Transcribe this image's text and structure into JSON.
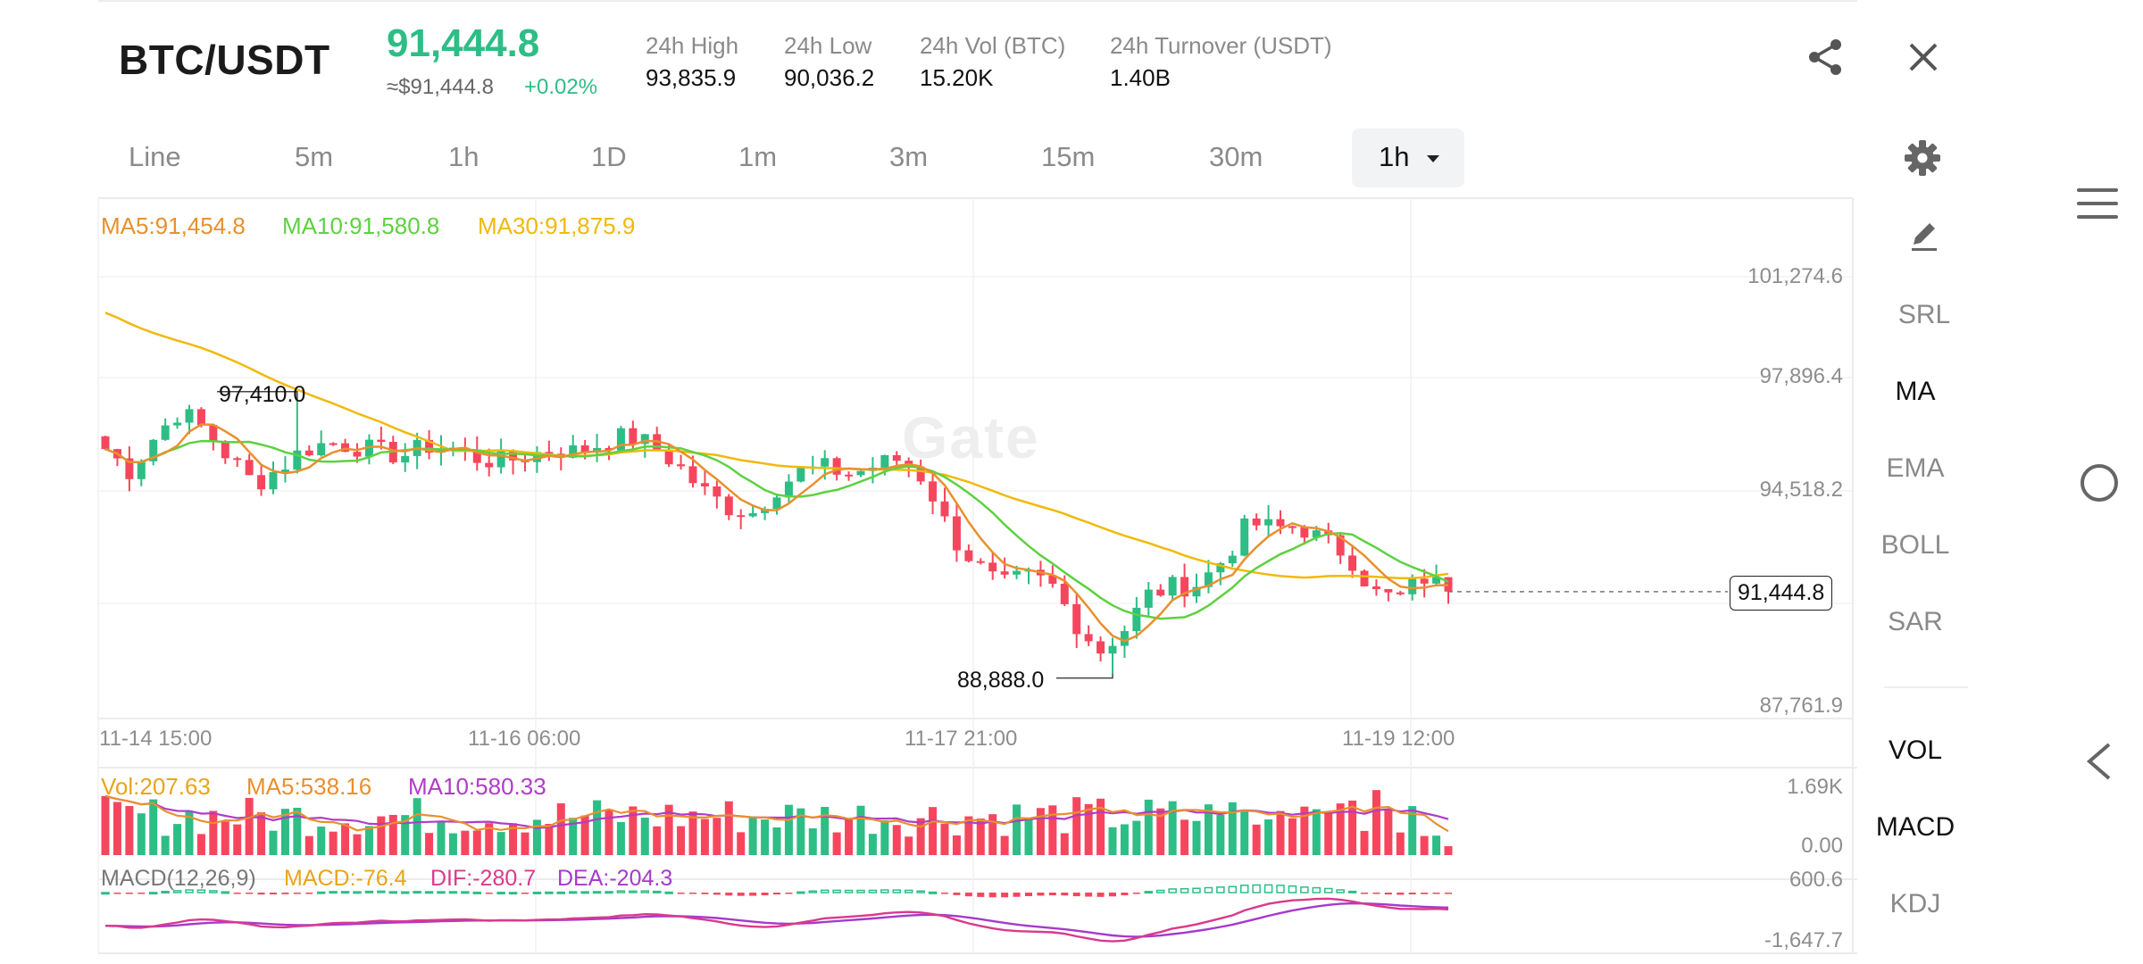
{
  "header": {
    "pair": "BTC/USDT",
    "last_price": "91,444.8",
    "approx_usd": "≈$91,444.8",
    "change_pct": "+0.02%",
    "stats": [
      {
        "label": "24h High",
        "value": "93,835.9"
      },
      {
        "label": "24h Low",
        "value": "90,036.2"
      },
      {
        "label": "24h Vol (BTC)",
        "value": "15.20K"
      },
      {
        "label": "24h Turnover (USDT)",
        "value": "1.40B"
      }
    ]
  },
  "timeframes": [
    "Line",
    "5m",
    "1h",
    "1D",
    "1m",
    "3m",
    "15m",
    "30m"
  ],
  "selected_timeframe": "1h",
  "ma_legend": {
    "ma5": "MA5:91,454.8",
    "ma10": "MA10:91,580.8",
    "ma30": "MA30:91,875.9"
  },
  "price_axis": [
    "101,274.6",
    "97,896.4",
    "94,518.2",
    "87,761.9"
  ],
  "current_price_tag": "91,444.8",
  "high_marker": "97,410.0",
  "low_marker": "88,888.0",
  "time_axis": [
    "11-14 15:00",
    "11-16 06:00",
    "11-17 21:00",
    "11-19 12:00"
  ],
  "watermark": "Gate",
  "vol_legend": {
    "vol": "Vol:207.63",
    "ma5": "MA5:538.16",
    "ma10": "MA10:580.33"
  },
  "vol_axis": [
    "1.69K",
    "0.00"
  ],
  "macd_legend": {
    "title": "MACD(12,26,9)",
    "macd": "MACD:-76.4",
    "dif": "DIF:-280.7",
    "dea": "DEA:-204.3"
  },
  "macd_axis": [
    "600.6",
    "-1,647.7"
  ],
  "side_tools": {
    "overlays": [
      "SRL",
      "MA",
      "EMA",
      "BOLL",
      "SAR"
    ],
    "active_overlay": "MA",
    "indicators": [
      "VOL",
      "MACD",
      "KDJ"
    ],
    "active_indicators": [
      "VOL",
      "MACD"
    ]
  },
  "colors": {
    "up": "#2ebd85",
    "down": "#f6465d",
    "ma5": "#e8902e",
    "ma10": "#5ed141",
    "ma30": "#f0b90b",
    "vol_ma10": "#b03cc8",
    "dif": "#d93a8c",
    "dea": "#a63acb"
  },
  "icons": [
    "share-icon",
    "close-icon",
    "gear-icon",
    "pencil-icon",
    "menu-icon",
    "home-circle-icon",
    "back-icon"
  ],
  "chart_data": {
    "type": "candlestick",
    "x_range": [
      "11-14 15:00",
      "11-19 12:00"
    ],
    "ylim": [
      87761.9,
      101274.6
    ],
    "close_path": [
      95900,
      95200,
      96300,
      97100,
      96500,
      95600,
      94800,
      95300,
      95900,
      96100,
      96000,
      95800,
      95700,
      96000,
      95900,
      95600,
      95500,
      95700,
      95900,
      95800,
      96100,
      96300,
      96000,
      95400,
      94600,
      94100,
      93900,
      94700,
      95200,
      95300,
      95100,
      95400,
      95600,
      94900,
      93200,
      92300,
      91600,
      91900,
      91700,
      90500,
      89600,
      90300,
      91400,
      91600,
      91700,
      92500,
      93600,
      93400,
      93500,
      93000,
      92600,
      91400,
      91200,
      91900,
      91444.8
    ]
  }
}
